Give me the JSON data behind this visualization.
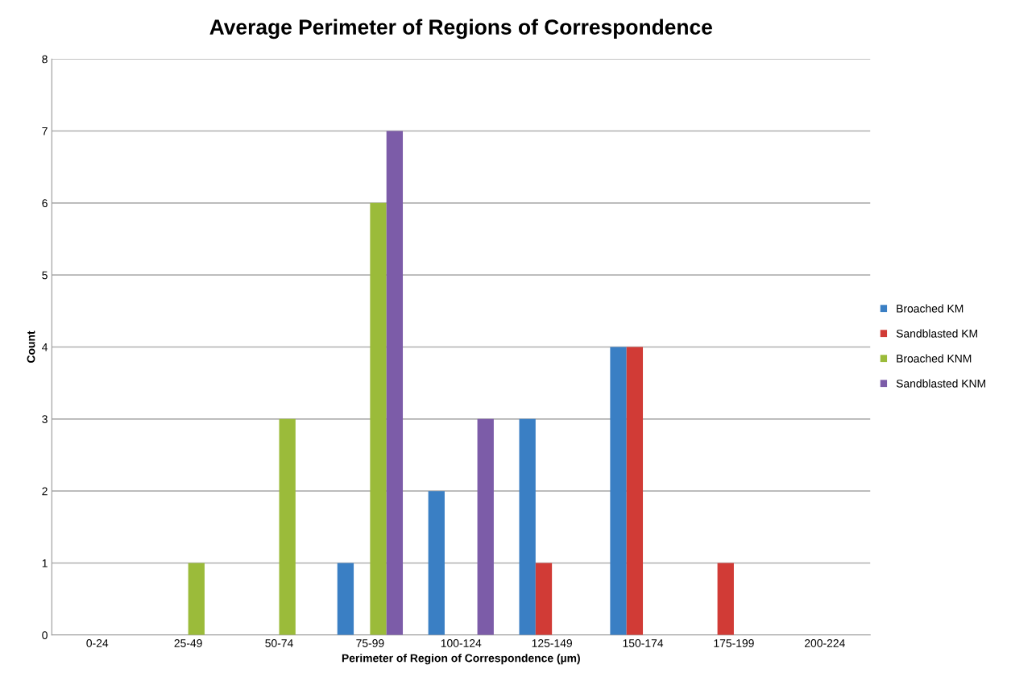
{
  "chart_data": {
    "type": "bar",
    "title": "Average Perimeter of Regions of Correspondence",
    "xlabel": "Perimeter of Region of Correspondence (µm)",
    "ylabel": "Count",
    "categories": [
      "0-24",
      "25-49",
      "50-74",
      "75-99",
      "100-124",
      "125-149",
      "150-174",
      "175-199",
      "200-224"
    ],
    "series": [
      {
        "name": "Broached KM",
        "color": "#3a7fc4",
        "values": [
          0,
          0,
          0,
          1,
          2,
          3,
          4,
          0,
          0
        ]
      },
      {
        "name": "Sandblasted KM",
        "color": "#d13b36",
        "values": [
          0,
          0,
          0,
          0,
          0,
          1,
          4,
          1,
          0
        ]
      },
      {
        "name": "Broached KNM",
        "color": "#9bbb3a",
        "values": [
          0,
          1,
          3,
          6,
          0,
          0,
          0,
          0,
          0
        ]
      },
      {
        "name": "Sandblasted KNM",
        "color": "#7c5ca8",
        "values": [
          0,
          0,
          0,
          7,
          3,
          0,
          0,
          0,
          0
        ]
      }
    ],
    "ylim": [
      0,
      8
    ],
    "yticks": [
      0,
      1,
      2,
      3,
      4,
      5,
      6,
      7,
      8
    ],
    "grid": "y",
    "legend": "right"
  }
}
